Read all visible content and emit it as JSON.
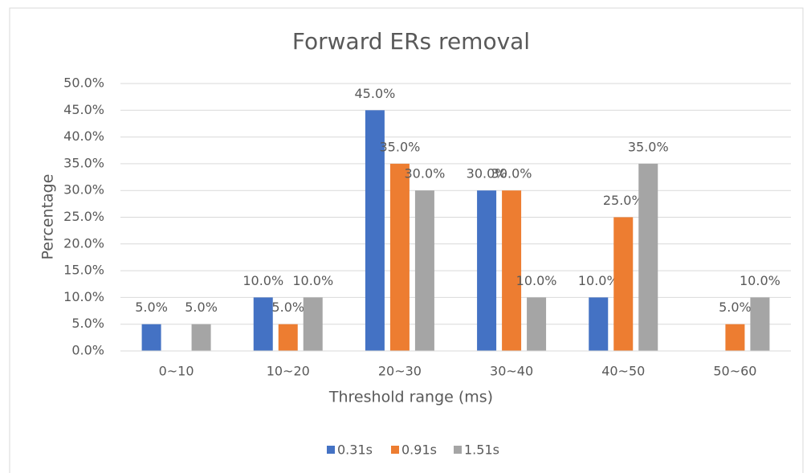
{
  "chart_data": {
    "type": "bar",
    "title": "Forward ERs removal",
    "x_label": "Threshold range (ms)",
    "y_label": "Percentage",
    "categories": [
      "0~10",
      "10~20",
      "20~30",
      "30~40",
      "40~50",
      "50~60"
    ],
    "series": [
      {
        "name": "0.31s",
        "color": "#4472c4",
        "values": [
          5,
          10,
          45,
          30,
          10,
          null
        ],
        "value_labels": [
          "5.0%",
          "10.0%",
          "45.0%",
          "30.0%",
          "10.0%",
          null
        ]
      },
      {
        "name": "0.91s",
        "color": "#ed7d31",
        "values": [
          null,
          5,
          35,
          30,
          25,
          5
        ],
        "value_labels": [
          null,
          "5.0%",
          "35.0%",
          "30.0%",
          "25.0%",
          "5.0%"
        ]
      },
      {
        "name": "1.51s",
        "color": "#a5a5a5",
        "values": [
          5,
          10,
          30,
          10,
          35,
          10
        ],
        "value_labels": [
          "5.0%",
          "10.0%",
          "30.0%",
          "10.0%",
          "35.0%",
          "10.0%"
        ]
      }
    ],
    "ylim": [
      0,
      50
    ],
    "yticks": [
      {
        "value": 0,
        "label": "0.0%"
      },
      {
        "value": 5,
        "label": "5.0%"
      },
      {
        "value": 10,
        "label": "10.0%"
      },
      {
        "value": 15,
        "label": "15.0%"
      },
      {
        "value": 20,
        "label": "20.0%"
      },
      {
        "value": 25,
        "label": "25.0%"
      },
      {
        "value": 30,
        "label": "30.0%"
      },
      {
        "value": 35,
        "label": "35.0%"
      },
      {
        "value": 40,
        "label": "40.0%"
      },
      {
        "value": 45,
        "label": "45.0%"
      },
      {
        "value": 50,
        "label": "50.0%"
      }
    ],
    "grid": true,
    "legend": "bottom"
  }
}
